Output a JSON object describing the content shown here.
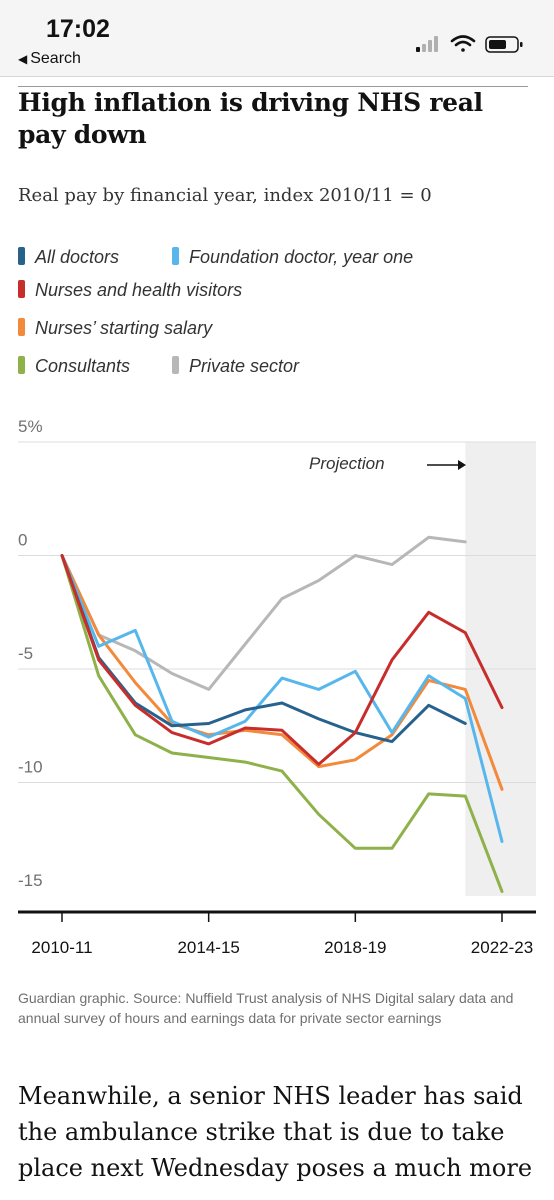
{
  "status_bar": {
    "time": "17:02",
    "back_label": "Search"
  },
  "article": {
    "headline": "High inflation is driving NHS real pay down",
    "subtitle": "Real pay by financial year, index 2010/11 = 0",
    "source": "Guardian graphic. Source: Nuffield Trust analysis of NHS Digital salary data and annual survey of hours and earnings data for private sector earnings",
    "body_text": "Meanwhile, a senior NHS leader has said the ambulance strike that is due to take place next Wednesday poses a much more"
  },
  "chart_data": {
    "type": "line",
    "title": "High inflation is driving NHS real pay down",
    "subtitle": "Real pay by financial year, index 2010/11 = 0",
    "x_tick_labels": [
      "2010-11",
      "2014-15",
      "2018-19",
      "2022-23"
    ],
    "y_tick_labels": [
      "5%",
      "0",
      "-5",
      "-10",
      "-15"
    ],
    "y_ticks": [
      5,
      0,
      -5,
      -10,
      -15
    ],
    "ylim": [
      -15,
      5
    ],
    "xlim": [
      0,
      12
    ],
    "x_tick_positions": [
      0,
      4,
      8,
      12
    ],
    "grid": "horizontal",
    "projection_label": "Projection",
    "projection_start": 11,
    "legend_position": "top",
    "series": [
      {
        "name": "All doctors",
        "color": "#27628e",
        "x": [
          0,
          1,
          2,
          3,
          4,
          5,
          6,
          7,
          8,
          9,
          10,
          11
        ],
        "y": [
          0,
          -4.5,
          -6.5,
          -7.5,
          -7.4,
          -6.8,
          -6.5,
          -7.2,
          -7.8,
          -8.2,
          -6.6,
          -7.4
        ]
      },
      {
        "name": "Foundation doctor, year one",
        "color": "#57b7ec",
        "x": [
          0,
          1,
          2,
          3,
          4,
          5,
          6,
          7,
          8,
          9,
          10,
          11,
          12
        ],
        "y": [
          0,
          -4,
          -3.3,
          -7.3,
          -8,
          -7.3,
          -5.4,
          -5.9,
          -5.1,
          -7.8,
          -5.3,
          -6.3,
          -12.6
        ]
      },
      {
        "name": "Nurses and health visitors",
        "color": "#c72d2b",
        "x": [
          0,
          1,
          2,
          3,
          4,
          5,
          6,
          7,
          8,
          9,
          10,
          11,
          12
        ],
        "y": [
          0,
          -4.6,
          -6.6,
          -7.8,
          -8.3,
          -7.6,
          -7.7,
          -9.2,
          -7.8,
          -4.6,
          -2.5,
          -3.4,
          -6.7
        ]
      },
      {
        "name": "Nurses’ starting salary",
        "color": "#f3893a",
        "x": [
          0,
          1,
          2,
          3,
          4,
          5,
          6,
          7,
          8,
          9,
          10,
          11,
          12
        ],
        "y": [
          0,
          -3.5,
          -5.6,
          -7.4,
          -7.9,
          -7.7,
          -7.9,
          -9.3,
          -9,
          -7.9,
          -5.5,
          -5.9,
          -10.3
        ]
      },
      {
        "name": "Consultants",
        "color": "#8eb14a",
        "x": [
          0,
          1,
          2,
          3,
          4,
          5,
          6,
          7,
          8,
          9,
          10,
          11,
          12
        ],
        "y": [
          0,
          -5.3,
          -7.9,
          -8.7,
          -8.9,
          -9.1,
          -9.5,
          -11.4,
          -12.9,
          -12.9,
          -10.5,
          -10.6,
          -14.8
        ]
      },
      {
        "name": "Private sector",
        "color": "#b7b7b7",
        "x": [
          0,
          1,
          2,
          3,
          4,
          5,
          6,
          7,
          8,
          9,
          10,
          11
        ],
        "y": [
          0,
          -3.5,
          -4.2,
          -5.2,
          -5.9,
          -3.9,
          -1.9,
          -1.1,
          0,
          -0.4,
          0.8,
          0.6
        ]
      }
    ]
  },
  "icons": {
    "back": "back-chevron-icon",
    "signal": "cellular-signal-icon",
    "wifi": "wifi-icon",
    "battery": "battery-icon"
  }
}
